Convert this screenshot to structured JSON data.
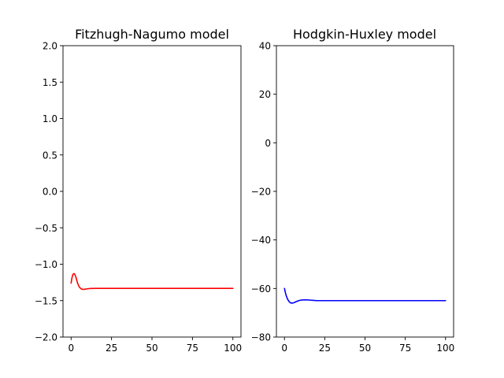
{
  "chart_data": [
    {
      "type": "line",
      "title": "Fitzhugh-Nagumo model",
      "xlim": [
        -5,
        105
      ],
      "ylim": [
        -2.0,
        2.0
      ],
      "xticks": [
        0,
        25,
        50,
        75,
        100
      ],
      "xtick_labels": [
        "0",
        "25",
        "50",
        "75",
        "100"
      ],
      "yticks": [
        -2.0,
        -1.5,
        -1.0,
        -0.5,
        0.0,
        0.5,
        1.0,
        1.5,
        2.0
      ],
      "ytick_labels": [
        "−2.0",
        "−1.5",
        "−1.0",
        "−0.5",
        "0.0",
        "0.5",
        "1.0",
        "1.5",
        "2.0"
      ],
      "grid": false,
      "series": [
        {
          "color": "#ff0000",
          "x": [
            0,
            0.5,
            1,
            1.5,
            2,
            2.5,
            3,
            3.5,
            4,
            5,
            6,
            7,
            8,
            10,
            12,
            15,
            20,
            25,
            30,
            40,
            50,
            60,
            70,
            80,
            90,
            100
          ],
          "y": [
            -1.26,
            -1.19,
            -1.15,
            -1.13,
            -1.13,
            -1.15,
            -1.18,
            -1.22,
            -1.26,
            -1.31,
            -1.335,
            -1.345,
            -1.345,
            -1.338,
            -1.333,
            -1.332,
            -1.332,
            -1.332,
            -1.332,
            -1.332,
            -1.332,
            -1.332,
            -1.332,
            -1.332,
            -1.332,
            -1.332
          ]
        }
      ]
    },
    {
      "type": "line",
      "title": "Hodgkin-Huxley model",
      "xlim": [
        -5,
        105
      ],
      "ylim": [
        -80,
        40
      ],
      "xticks": [
        0,
        25,
        50,
        75,
        100
      ],
      "xtick_labels": [
        "0",
        "25",
        "50",
        "75",
        "100"
      ],
      "yticks": [
        -80,
        -60,
        -40,
        -20,
        0,
        20,
        40
      ],
      "ytick_labels": [
        "−80",
        "−60",
        "−40",
        "−20",
        "0",
        "20",
        "40"
      ],
      "grid": false,
      "series": [
        {
          "color": "#0000ff",
          "x": [
            0,
            0.5,
            1,
            2,
            3,
            4,
            5,
            6,
            7,
            8,
            10,
            12,
            14,
            16,
            18,
            20,
            25,
            30,
            40,
            50,
            60,
            70,
            80,
            90,
            100
          ],
          "y": [
            -60,
            -61.5,
            -62.8,
            -64.5,
            -65.5,
            -66,
            -66,
            -65.8,
            -65.5,
            -65.2,
            -64.8,
            -64.7,
            -64.7,
            -64.8,
            -64.9,
            -65,
            -65,
            -65,
            -65,
            -65,
            -65,
            -65,
            -65,
            -65,
            -65
          ]
        }
      ]
    }
  ]
}
